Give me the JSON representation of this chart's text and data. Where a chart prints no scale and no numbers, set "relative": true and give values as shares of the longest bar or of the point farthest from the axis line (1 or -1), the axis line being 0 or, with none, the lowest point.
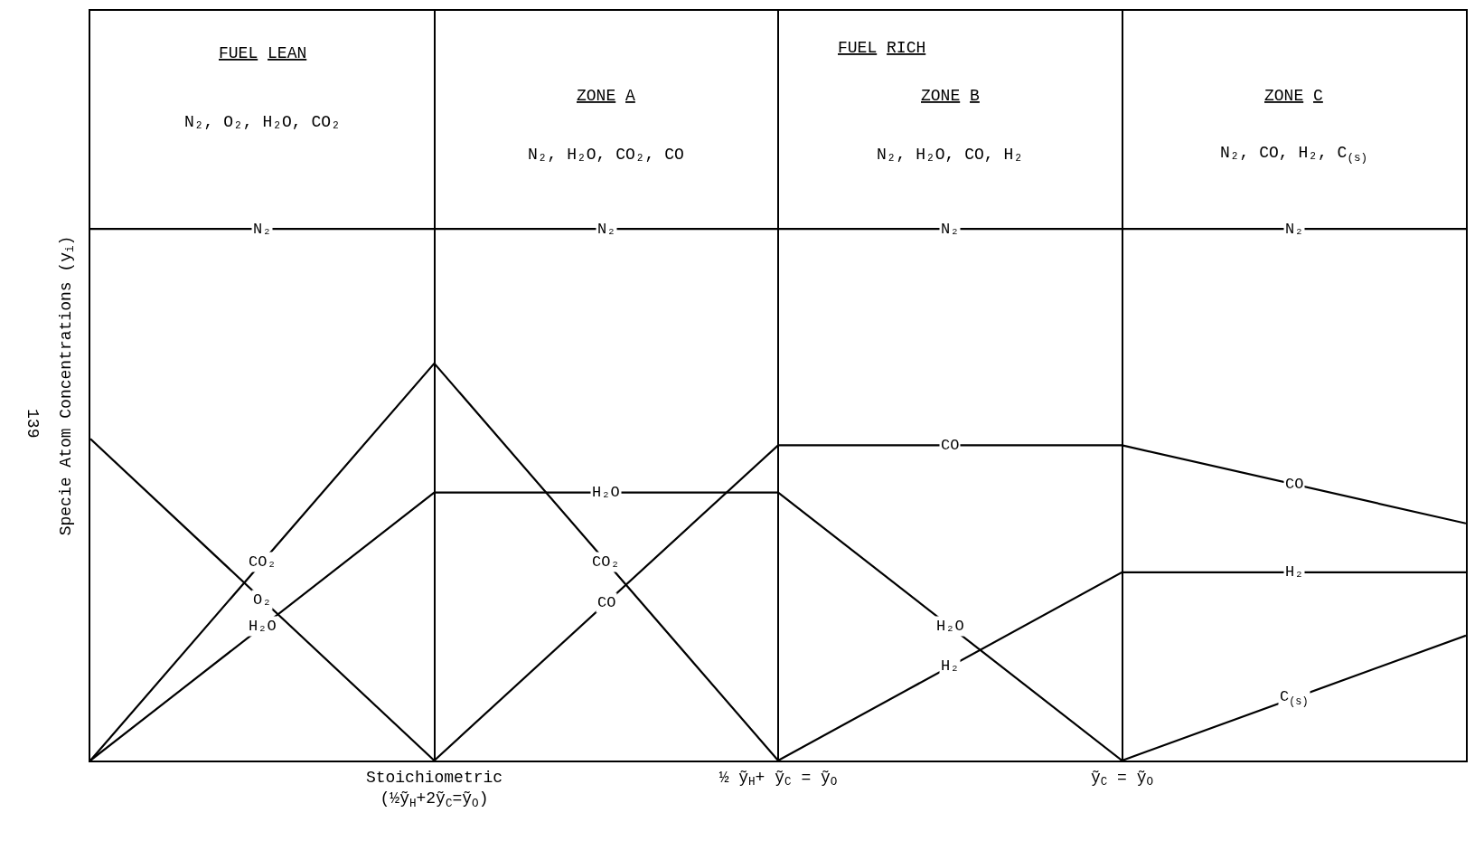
{
  "chart_data": {
    "type": "line",
    "relative": true,
    "ylabel": "Specie Atom Concentrations (y$_{i}$)",
    "categories": [
      null,
      "Stoichiometric\n(½ỹ$_{H}$+2ỹ$_{C}$=ỹ$_{O}$)",
      "½ ỹ$_{H}$+ ỹ$_{C}$ = ỹ$_{O}$",
      "ỹ$_{C}$ = ỹ$_{O}$",
      null
    ],
    "series": [
      {
        "name": "N₂",
        "color": "#000000",
        "values": [
          1,
          1,
          1,
          1,
          1
        ]
      },
      {
        "name": "O₂",
        "color": "#000000",
        "values": [
          0.605,
          0,
          null,
          null,
          null
        ]
      },
      {
        "name": "CO₂",
        "color": "#000000",
        "values": [
          0,
          0.747,
          0,
          null,
          null
        ]
      },
      {
        "name": "H₂O",
        "color": "#000000",
        "values": [
          0,
          0.504,
          0.504,
          0,
          null
        ]
      },
      {
        "name": "CO",
        "color": "#000000",
        "values": [
          null,
          0,
          0.593,
          0.593,
          0.446
        ]
      },
      {
        "name": "H₂",
        "color": "#000000",
        "values": [
          null,
          null,
          0,
          0.354,
          0.354
        ]
      },
      {
        "name": "C$_{(s)}$",
        "color": "#000000",
        "values": [
          null,
          null,
          null,
          0,
          0.235
        ]
      }
    ],
    "annotations": [
      "FUEL LEAN",
      "N₂, O₂, H₂O, CO₂",
      "FUEL RICH",
      "ZONE A",
      "N₂, H₂O, CO₂, CO",
      "ZONE B",
      "N₂, H₂O, CO, H₂",
      "ZONE C",
      "N₂, CO, H₂, C$_{(s)}$",
      "139"
    ],
    "grid": "x",
    "legend": false,
    "marker": "none",
    "line_style": "solid"
  }
}
